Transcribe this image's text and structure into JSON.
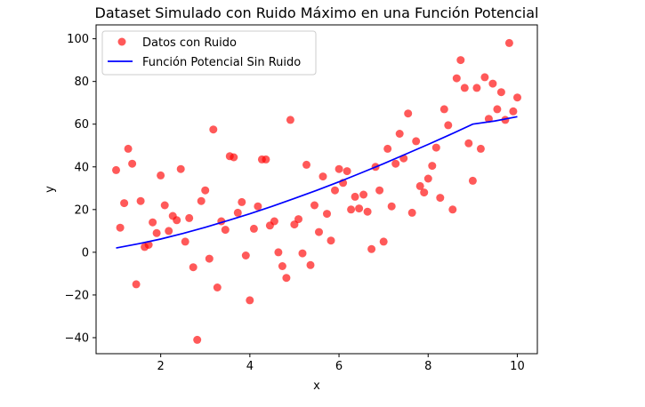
{
  "chart_data": {
    "type": "scatter",
    "title": "Dataset Simulado con Ruido Máximo en una Función Potencial",
    "xlabel": "x",
    "ylabel": "y",
    "xlim": [
      0.55,
      10.45
    ],
    "ylim": [
      -47.5,
      106.5
    ],
    "xticks": [
      2,
      4,
      6,
      8,
      10
    ],
    "yticks": [
      -40,
      -20,
      0,
      20,
      40,
      60,
      80,
      100
    ],
    "grid": false,
    "legend_position": "upper-left",
    "series": [
      {
        "name": "Datos con Ruido",
        "kind": "scatter",
        "color": "#ff0000",
        "opacity": 0.65,
        "points": [
          [
            1.0,
            38.5
          ],
          [
            1.09,
            11.5
          ],
          [
            1.18,
            23.0
          ],
          [
            1.27,
            48.5
          ],
          [
            1.36,
            41.5
          ],
          [
            1.45,
            -15.0
          ],
          [
            1.55,
            24.0
          ],
          [
            1.64,
            2.5
          ],
          [
            1.73,
            3.5
          ],
          [
            1.82,
            14.0
          ],
          [
            1.91,
            9.0
          ],
          [
            2.0,
            36.0
          ],
          [
            2.09,
            22.0
          ],
          [
            2.18,
            10.0
          ],
          [
            2.27,
            17.0
          ],
          [
            2.36,
            15.0
          ],
          [
            2.45,
            39.0
          ],
          [
            2.55,
            5.0
          ],
          [
            2.64,
            16.0
          ],
          [
            2.73,
            -7.0
          ],
          [
            2.82,
            -41.0
          ],
          [
            2.91,
            24.0
          ],
          [
            3.0,
            29.0
          ],
          [
            3.09,
            -3.0
          ],
          [
            3.18,
            57.5
          ],
          [
            3.27,
            -16.5
          ],
          [
            3.36,
            14.5
          ],
          [
            3.45,
            10.5
          ],
          [
            3.55,
            45.0
          ],
          [
            3.64,
            44.5
          ],
          [
            3.73,
            18.5
          ],
          [
            3.82,
            23.5
          ],
          [
            3.91,
            -1.5
          ],
          [
            4.0,
            -22.5
          ],
          [
            4.09,
            11.0
          ],
          [
            4.18,
            21.5
          ],
          [
            4.27,
            43.5
          ],
          [
            4.36,
            43.5
          ],
          [
            4.45,
            12.5
          ],
          [
            4.55,
            14.5
          ],
          [
            4.64,
            0.0
          ],
          [
            4.73,
            -6.5
          ],
          [
            4.82,
            -12.0
          ],
          [
            4.91,
            62.0
          ],
          [
            5.0,
            13.0
          ],
          [
            5.09,
            15.5
          ],
          [
            5.18,
            -0.5
          ],
          [
            5.27,
            41.0
          ],
          [
            5.36,
            -6.0
          ],
          [
            5.45,
            22.0
          ],
          [
            5.55,
            9.5
          ],
          [
            5.64,
            35.5
          ],
          [
            5.73,
            18.0
          ],
          [
            5.82,
            5.5
          ],
          [
            5.91,
            29.0
          ],
          [
            6.0,
            39.0
          ],
          [
            6.09,
            32.5
          ],
          [
            6.18,
            38.0
          ],
          [
            6.27,
            20.0
          ],
          [
            6.36,
            26.0
          ],
          [
            6.45,
            20.5
          ],
          [
            6.55,
            27.0
          ],
          [
            6.64,
            19.0
          ],
          [
            6.73,
            1.5
          ],
          [
            6.82,
            40.0
          ],
          [
            6.91,
            29.0
          ],
          [
            7.0,
            5.0
          ],
          [
            7.09,
            48.5
          ],
          [
            7.18,
            21.5
          ],
          [
            7.27,
            41.5
          ],
          [
            7.36,
            55.5
          ],
          [
            7.45,
            44.0
          ],
          [
            7.55,
            65.0
          ],
          [
            7.64,
            18.5
          ],
          [
            7.73,
            52.0
          ],
          [
            7.82,
            31.0
          ],
          [
            7.91,
            28.0
          ],
          [
            8.0,
            34.5
          ],
          [
            8.09,
            40.5
          ],
          [
            8.18,
            49.0
          ],
          [
            8.27,
            25.5
          ],
          [
            8.36,
            67.0
          ],
          [
            8.45,
            59.5
          ],
          [
            8.55,
            20.0
          ],
          [
            8.64,
            81.5
          ],
          [
            8.73,
            90.0
          ],
          [
            8.82,
            77.0
          ],
          [
            8.91,
            51.0
          ],
          [
            9.0,
            33.5
          ],
          [
            9.09,
            77.0
          ],
          [
            9.18,
            48.5
          ],
          [
            9.27,
            82.0
          ],
          [
            9.36,
            62.5
          ],
          [
            9.45,
            79.0
          ],
          [
            9.55,
            67.0
          ],
          [
            9.64,
            75.0
          ],
          [
            9.73,
            62.0
          ],
          [
            9.82,
            98.0
          ],
          [
            9.91,
            66.0
          ],
          [
            10.0,
            72.5
          ]
        ]
      },
      {
        "name": "Función Potencial Sin Ruido",
        "kind": "line",
        "color": "#0000ff",
        "points": [
          [
            1.0,
            2.0
          ],
          [
            1.5,
            4.0
          ],
          [
            2.0,
            6.2
          ],
          [
            2.5,
            8.8
          ],
          [
            3.0,
            11.7
          ],
          [
            3.5,
            14.8
          ],
          [
            4.0,
            18.0
          ],
          [
            4.5,
            21.5
          ],
          [
            5.0,
            25.2
          ],
          [
            5.5,
            29.0
          ],
          [
            6.0,
            33.0
          ],
          [
            6.5,
            37.2
          ],
          [
            7.0,
            41.5
          ],
          [
            7.5,
            46.0
          ],
          [
            8.0,
            50.5
          ],
          [
            8.5,
            55.2
          ],
          [
            9.0,
            60.0
          ],
          [
            9.5,
            61.5
          ],
          [
            10.0,
            63.5
          ]
        ]
      }
    ]
  }
}
